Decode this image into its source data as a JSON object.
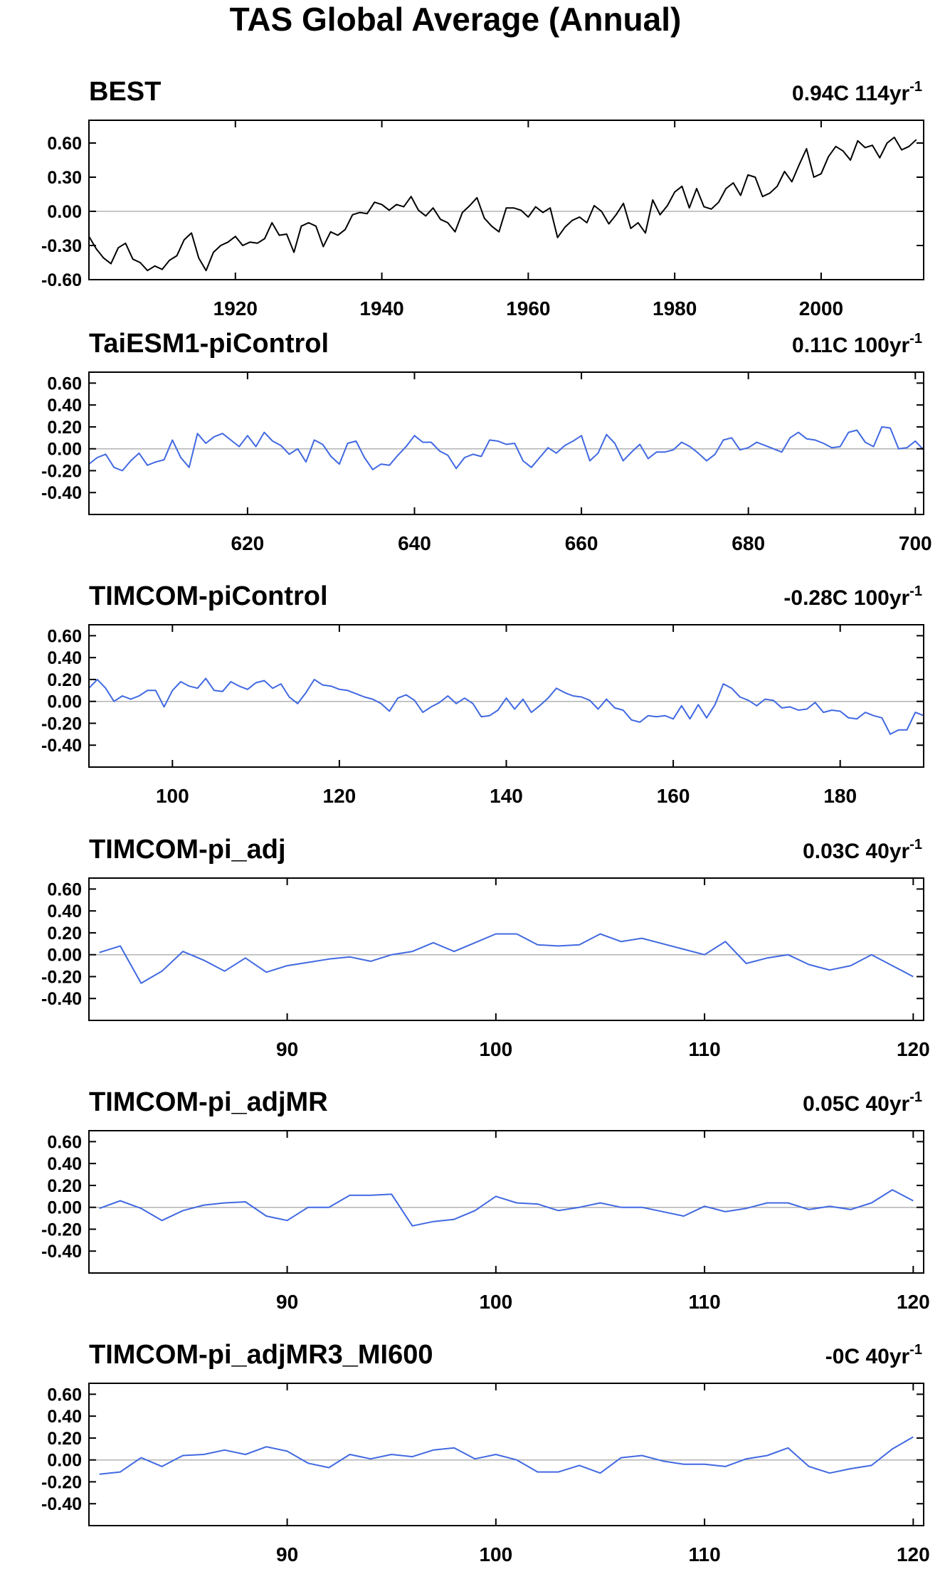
{
  "title": "TAS Global Average (Annual)",
  "colors": {
    "observed_line": "#000000",
    "model_line": "#4169e1",
    "zero_line": "#b3b3b3",
    "frame": "#000000"
  },
  "chart_data": [
    {
      "type": "line",
      "title": "BEST",
      "note_value": "0.94C 114yr",
      "note_exp": "-1",
      "line_color": "#000000",
      "xlim": [
        1900,
        2014
      ],
      "ylim": [
        -0.6,
        0.8
      ],
      "yticks": [
        -0.6,
        -0.3,
        0.0,
        0.3,
        0.6
      ],
      "ytick_labels": [
        "-0.60",
        "-0.30",
        "0.00",
        "0.30",
        "0.60"
      ],
      "xticks": [
        1920,
        1940,
        1960,
        1980,
        2000
      ],
      "xtick_labels": [
        "1920",
        "1940",
        "1960",
        "1980",
        "2000"
      ],
      "x_start": 1900,
      "x_step": 1,
      "values": [
        -0.22,
        -0.33,
        -0.41,
        -0.46,
        -0.32,
        -0.28,
        -0.42,
        -0.45,
        -0.52,
        -0.48,
        -0.51,
        -0.43,
        -0.39,
        -0.25,
        -0.19,
        -0.41,
        -0.52,
        -0.36,
        -0.3,
        -0.27,
        -0.22,
        -0.3,
        -0.27,
        -0.28,
        -0.24,
        -0.1,
        -0.21,
        -0.2,
        -0.36,
        -0.13,
        -0.1,
        -0.13,
        -0.31,
        -0.18,
        -0.21,
        -0.16,
        -0.03,
        -0.01,
        -0.02,
        0.08,
        0.06,
        0.01,
        0.06,
        0.04,
        0.13,
        0.01,
        -0.04,
        0.03,
        -0.07,
        -0.1,
        -0.18,
        -0.01,
        0.05,
        0.12,
        -0.06,
        -0.13,
        -0.18,
        0.03,
        0.03,
        0.01,
        -0.05,
        0.04,
        -0.01,
        0.03,
        -0.23,
        -0.14,
        -0.08,
        -0.05,
        -0.1,
        0.05,
        0.0,
        -0.11,
        -0.03,
        0.07,
        -0.15,
        -0.1,
        -0.19,
        0.1,
        -0.03,
        0.05,
        0.17,
        0.22,
        0.03,
        0.2,
        0.04,
        0.02,
        0.08,
        0.2,
        0.25,
        0.14,
        0.32,
        0.3,
        0.13,
        0.16,
        0.22,
        0.35,
        0.26,
        0.41,
        0.55,
        0.3,
        0.33,
        0.48,
        0.57,
        0.53,
        0.45,
        0.62,
        0.56,
        0.58,
        0.47,
        0.6,
        0.65,
        0.54,
        0.57,
        0.63
      ]
    },
    {
      "type": "line",
      "title": "TaiESM1-piControl",
      "note_value": "0.11C 100yr",
      "note_exp": "-1",
      "line_color": "#4169e1",
      "xlim": [
        601,
        701
      ],
      "ylim": [
        -0.6,
        0.7
      ],
      "yticks": [
        -0.4,
        -0.2,
        0.0,
        0.2,
        0.4,
        0.6
      ],
      "ytick_labels": [
        "-0.40",
        "-0.20",
        "0.00",
        "0.20",
        "0.40",
        "0.60"
      ],
      "xticks": [
        620,
        640,
        660,
        680,
        700
      ],
      "xtick_labels": [
        "620",
        "640",
        "660",
        "680",
        "700"
      ],
      "x_start": 601,
      "x_step": 1,
      "values": [
        -0.14,
        -0.08,
        -0.05,
        -0.17,
        -0.2,
        -0.11,
        -0.04,
        -0.15,
        -0.12,
        -0.1,
        0.08,
        -0.08,
        -0.17,
        0.14,
        0.05,
        0.11,
        0.14,
        0.08,
        0.02,
        0.12,
        0.02,
        0.15,
        0.07,
        0.03,
        -0.05,
        0.0,
        -0.12,
        0.08,
        0.04,
        -0.07,
        -0.14,
        0.05,
        0.07,
        -0.08,
        -0.19,
        -0.14,
        -0.15,
        -0.06,
        0.02,
        0.12,
        0.06,
        0.06,
        -0.02,
        -0.06,
        -0.18,
        -0.08,
        -0.05,
        -0.07,
        0.08,
        0.07,
        0.04,
        0.05,
        -0.11,
        -0.17,
        -0.08,
        0.01,
        -0.04,
        0.03,
        0.07,
        0.12,
        -0.11,
        -0.04,
        0.13,
        0.05,
        -0.11,
        -0.03,
        0.04,
        -0.09,
        -0.03,
        -0.03,
        -0.01,
        0.06,
        0.02,
        -0.04,
        -0.11,
        -0.05,
        0.08,
        0.1,
        -0.01,
        0.01,
        0.06,
        0.03,
        0.0,
        -0.03,
        0.1,
        0.15,
        0.09,
        0.08,
        0.05,
        0.01,
        0.02,
        0.15,
        0.17,
        0.06,
        0.02,
        0.2,
        0.19,
        0.0,
        0.01,
        0.07,
        -0.01
      ]
    },
    {
      "type": "line",
      "title": "TIMCOM-piControl",
      "note_value": "-0.28C 100yr",
      "note_exp": "-1",
      "line_color": "#4169e1",
      "xlim": [
        90,
        190
      ],
      "ylim": [
        -0.6,
        0.7
      ],
      "yticks": [
        -0.4,
        -0.2,
        0.0,
        0.2,
        0.4,
        0.6
      ],
      "ytick_labels": [
        "-0.40",
        "-0.20",
        "0.00",
        "0.20",
        "0.40",
        "0.60"
      ],
      "xticks": [
        100,
        120,
        140,
        160,
        180
      ],
      "xtick_labels": [
        "100",
        "120",
        "140",
        "160",
        "180"
      ],
      "x_start": 90,
      "x_step": 1,
      "values": [
        0.12,
        0.2,
        0.12,
        0.0,
        0.05,
        0.02,
        0.05,
        0.1,
        0.1,
        -0.05,
        0.1,
        0.18,
        0.14,
        0.12,
        0.21,
        0.1,
        0.09,
        0.18,
        0.14,
        0.11,
        0.17,
        0.19,
        0.12,
        0.16,
        0.04,
        -0.02,
        0.08,
        0.2,
        0.15,
        0.14,
        0.11,
        0.1,
        0.07,
        0.04,
        0.02,
        -0.02,
        -0.09,
        0.03,
        0.06,
        0.01,
        -0.1,
        -0.05,
        -0.01,
        0.05,
        -0.02,
        0.03,
        -0.02,
        -0.14,
        -0.13,
        -0.08,
        0.03,
        -0.07,
        0.02,
        -0.1,
        -0.04,
        0.03,
        0.12,
        0.08,
        0.05,
        0.04,
        0.01,
        -0.07,
        0.02,
        -0.06,
        -0.08,
        -0.17,
        -0.19,
        -0.13,
        -0.14,
        -0.13,
        -0.16,
        -0.04,
        -0.16,
        -0.03,
        -0.15,
        -0.03,
        0.16,
        0.12,
        0.04,
        0.01,
        -0.04,
        0.02,
        0.01,
        -0.06,
        -0.05,
        -0.08,
        -0.07,
        -0.01,
        -0.1,
        -0.08,
        -0.09,
        -0.15,
        -0.16,
        -0.1,
        -0.13,
        -0.15,
        -0.3,
        -0.26,
        -0.26,
        -0.1,
        -0.13
      ]
    },
    {
      "type": "line",
      "title": "TIMCOM-pi_adj",
      "note_value": "0.03C 40yr",
      "note_exp": "-1",
      "line_color": "#4169e1",
      "xlim": [
        80.5,
        120.5
      ],
      "ylim": [
        -0.6,
        0.7
      ],
      "yticks": [
        -0.4,
        -0.2,
        0.0,
        0.2,
        0.4,
        0.6
      ],
      "ytick_labels": [
        "-0.40",
        "-0.20",
        "0.00",
        "0.20",
        "0.40",
        "0.60"
      ],
      "xticks": [
        90,
        100,
        110,
        120
      ],
      "xtick_labels": [
        "90",
        "100",
        "110",
        "120"
      ],
      "x_start": 81,
      "x_step": 1,
      "values": [
        0.02,
        0.08,
        -0.26,
        -0.15,
        0.03,
        -0.05,
        -0.15,
        -0.03,
        -0.16,
        -0.1,
        -0.07,
        -0.04,
        -0.02,
        -0.06,
        0.0,
        0.03,
        0.11,
        0.03,
        0.11,
        0.19,
        0.19,
        0.09,
        0.08,
        0.09,
        0.19,
        0.12,
        0.15,
        0.1,
        0.05,
        0.0,
        0.12,
        -0.08,
        -0.03,
        0.0,
        -0.09,
        -0.14,
        -0.1,
        0.0,
        -0.1,
        -0.2
      ]
    },
    {
      "type": "line",
      "title": "TIMCOM-pi_adjMR",
      "note_value": "0.05C 40yr",
      "note_exp": "-1",
      "line_color": "#4169e1",
      "xlim": [
        80.5,
        120.5
      ],
      "ylim": [
        -0.6,
        0.7
      ],
      "yticks": [
        -0.4,
        -0.2,
        0.0,
        0.2,
        0.4,
        0.6
      ],
      "ytick_labels": [
        "-0.40",
        "-0.20",
        "0.00",
        "0.20",
        "0.40",
        "0.60"
      ],
      "xticks": [
        90,
        100,
        110,
        120
      ],
      "xtick_labels": [
        "90",
        "100",
        "110",
        "120"
      ],
      "x_start": 81,
      "x_step": 1,
      "values": [
        -0.01,
        0.06,
        -0.01,
        -0.12,
        -0.03,
        0.02,
        0.04,
        0.05,
        -0.08,
        -0.12,
        0.0,
        0.0,
        0.11,
        0.11,
        0.12,
        -0.17,
        -0.13,
        -0.11,
        -0.03,
        0.1,
        0.04,
        0.03,
        -0.03,
        0.0,
        0.04,
        0.0,
        0.0,
        -0.04,
        -0.08,
        0.01,
        -0.04,
        -0.01,
        0.04,
        0.04,
        -0.02,
        0.01,
        -0.02,
        0.04,
        0.16,
        0.06
      ]
    },
    {
      "type": "line",
      "title": "TIMCOM-pi_adjMR3_MI600",
      "note_value": "-0C 40yr",
      "note_exp": "-1",
      "line_color": "#4169e1",
      "xlim": [
        80.5,
        120.5
      ],
      "ylim": [
        -0.6,
        0.7
      ],
      "yticks": [
        -0.4,
        -0.2,
        0.0,
        0.2,
        0.4,
        0.6
      ],
      "ytick_labels": [
        "-0.40",
        "-0.20",
        "0.00",
        "0.20",
        "0.40",
        "0.60"
      ],
      "xticks": [
        90,
        100,
        110,
        120
      ],
      "xtick_labels": [
        "90",
        "100",
        "110",
        "120"
      ],
      "x_start": 81,
      "x_step": 1,
      "values": [
        -0.13,
        -0.11,
        0.02,
        -0.06,
        0.04,
        0.05,
        0.09,
        0.05,
        0.12,
        0.08,
        -0.03,
        -0.07,
        0.05,
        0.01,
        0.05,
        0.03,
        0.09,
        0.11,
        0.01,
        0.05,
        0.0,
        -0.11,
        -0.11,
        -0.05,
        -0.12,
        0.02,
        0.04,
        -0.01,
        -0.04,
        -0.04,
        -0.06,
        0.01,
        0.04,
        0.11,
        -0.06,
        -0.12,
        -0.08,
        -0.05,
        0.1,
        0.21
      ]
    }
  ]
}
